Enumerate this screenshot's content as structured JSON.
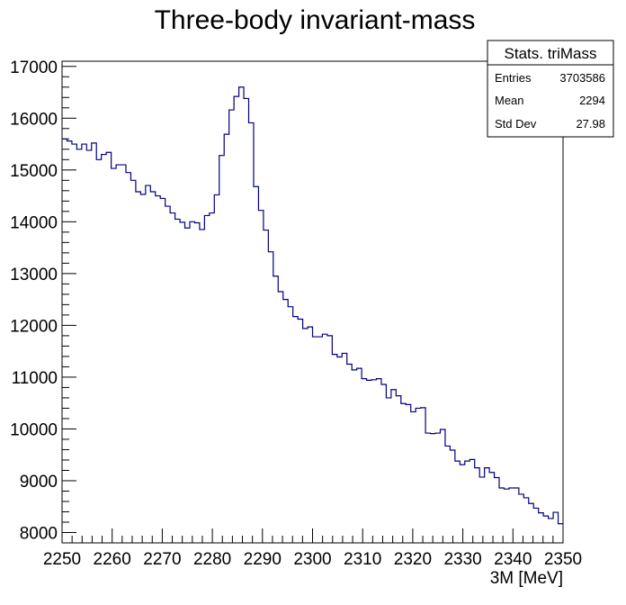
{
  "chart_data": {
    "type": "histogram",
    "title": "Three-body invariant-mass",
    "xlabel": "3M [MeV]",
    "ylabel": "",
    "xlim": [
      2250,
      2350
    ],
    "ylim": [
      7800,
      17100
    ],
    "x_ticks": [
      2250,
      2260,
      2270,
      2280,
      2290,
      2300,
      2310,
      2320,
      2330,
      2340,
      2350
    ],
    "y_ticks": [
      8000,
      9000,
      10000,
      11000,
      12000,
      13000,
      14000,
      15000,
      16000,
      17000
    ],
    "bin_width": 1,
    "values": [
      15600,
      15560,
      15500,
      15400,
      15500,
      15380,
      15520,
      15200,
      15300,
      15340,
      15030,
      15100,
      15100,
      14950,
      14800,
      14580,
      14530,
      14700,
      14580,
      14500,
      14450,
      14300,
      14170,
      14050,
      13990,
      13880,
      14000,
      13980,
      13850,
      14120,
      14170,
      14520,
      15280,
      15690,
      16160,
      16420,
      16600,
      16380,
      15910,
      14680,
      14220,
      13840,
      13420,
      12950,
      12650,
      12500,
      12360,
      12170,
      12120,
      11940,
      11970,
      11780,
      11780,
      11830,
      11800,
      11440,
      11390,
      11460,
      11250,
      11140,
      11170,
      10970,
      10940,
      10950,
      10970,
      10860,
      10600,
      10760,
      10640,
      10490,
      10470,
      10330,
      10400,
      10410,
      9920,
      9910,
      9920,
      9990,
      9670,
      9590,
      9380,
      9310,
      9380,
      9410,
      9250,
      9070,
      9250,
      9160,
      9060,
      8860,
      8840,
      8860,
      8860,
      8740,
      8670,
      8560,
      8470,
      8380,
      8320,
      8270,
      8390,
      8170
    ]
  },
  "stats": {
    "title": "Stats. triMass",
    "rows": [
      {
        "label": "Entries",
        "value": "3703586"
      },
      {
        "label": "Mean",
        "value": "2294"
      },
      {
        "label": "Std Dev",
        "value": "27.98"
      }
    ]
  },
  "colors": {
    "line": "#00007f",
    "frame": "#000000"
  }
}
